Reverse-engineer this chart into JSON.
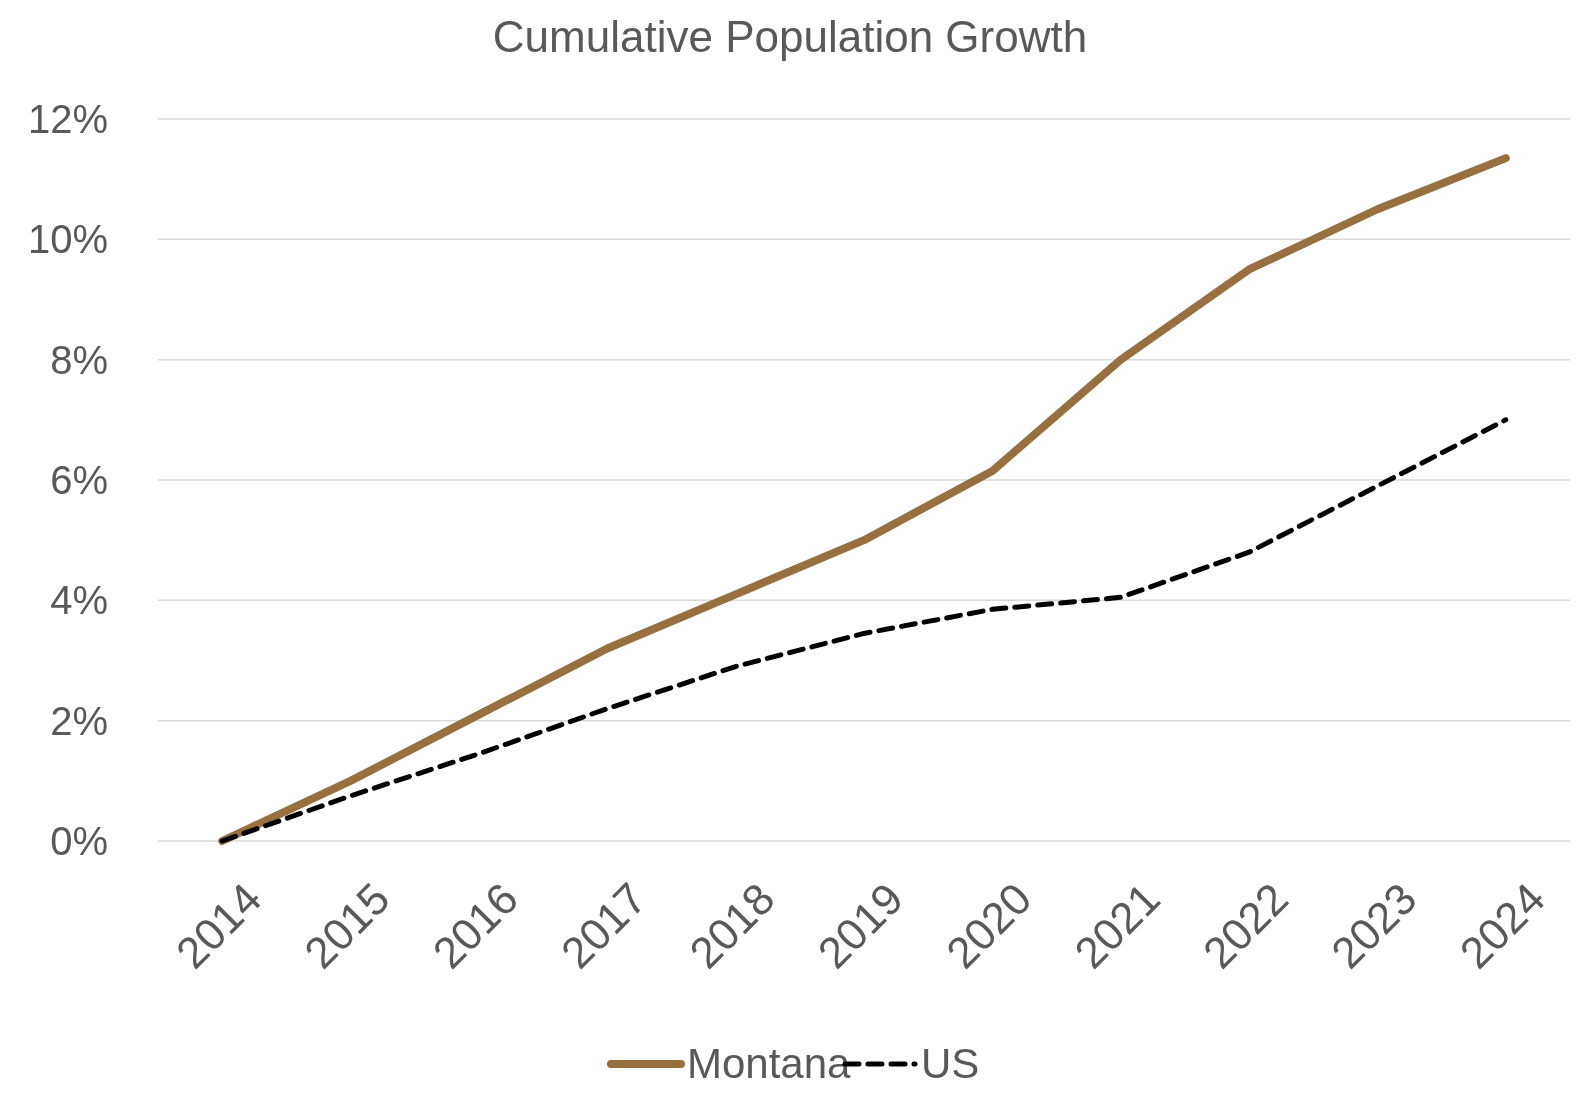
{
  "chart_data": {
    "type": "line",
    "title": "Cumulative Population Growth",
    "categories": [
      "2014",
      "2015",
      "2016",
      "2017",
      "2018",
      "2019",
      "2020",
      "2021",
      "2022",
      "2023",
      "2024"
    ],
    "series": [
      {
        "name": "Montana",
        "color": "#987040",
        "line_style": "solid",
        "values": [
          0,
          1.0,
          2.1,
          3.2,
          4.1,
          5.0,
          6.15,
          8.0,
          9.5,
          10.5,
          11.35
        ]
      },
      {
        "name": "US",
        "color": "#000000",
        "line_style": "dashed",
        "values": [
          0,
          0.75,
          1.45,
          2.2,
          2.9,
          3.45,
          3.85,
          4.05,
          4.8,
          5.9,
          7.0
        ]
      }
    ],
    "ylim": [
      0,
      12
    ],
    "yticks": [
      {
        "value": 0,
        "label": "0%"
      },
      {
        "value": 2,
        "label": "2%"
      },
      {
        "value": 4,
        "label": "4%"
      },
      {
        "value": 6,
        "label": "6%"
      },
      {
        "value": 8,
        "label": "8%"
      },
      {
        "value": 10,
        "label": "10%"
      },
      {
        "value": 12,
        "label": "12%"
      }
    ],
    "grid": "y",
    "legend": "bottom",
    "marker": "none"
  }
}
